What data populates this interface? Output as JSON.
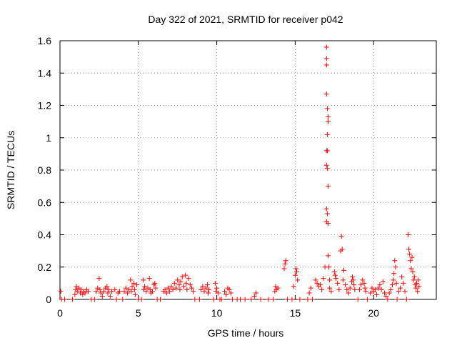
{
  "chart_data": {
    "type": "scatter",
    "title": "Day 322 of 2021, SRMTID for receiver p042",
    "xlabel": "GPS time / hours",
    "ylabel": "SRMTID / TECUs",
    "xlim": [
      0,
      24
    ],
    "ylim": [
      0,
      1.6
    ],
    "xticks": [
      0,
      5,
      10,
      15,
      20
    ],
    "xtick_labels": [
      "0",
      "5",
      "10",
      "15",
      "20"
    ],
    "yticks": [
      0,
      0.2,
      0.4,
      0.6,
      0.8,
      1.0,
      1.2,
      1.4,
      1.6
    ],
    "ytick_labels": [
      "0",
      "0.2",
      "0.4",
      "0.6",
      "0.8",
      "1",
      "1.2",
      "1.4",
      "1.6"
    ],
    "grid": true,
    "marker": "+",
    "marker_color": "#ff0000",
    "series": [
      {
        "name": "SRMTID",
        "points": [
          [
            0.05,
            0.05
          ],
          [
            0.1,
            0.0
          ],
          [
            0.3,
            0.0
          ],
          [
            0.8,
            0.0
          ],
          [
            0.95,
            0.03
          ],
          [
            1.0,
            0.06
          ],
          [
            1.05,
            0.08
          ],
          [
            1.1,
            0.05
          ],
          [
            1.2,
            0.07
          ],
          [
            1.3,
            0.04
          ],
          [
            1.35,
            0.06
          ],
          [
            1.45,
            0.03
          ],
          [
            1.5,
            0.05
          ],
          [
            1.6,
            0.04
          ],
          [
            1.7,
            0.06
          ],
          [
            1.8,
            0.05
          ],
          [
            2.0,
            0.0
          ],
          [
            2.2,
            0.0
          ],
          [
            2.3,
            0.05
          ],
          [
            2.4,
            0.07
          ],
          [
            2.5,
            0.13
          ],
          [
            2.55,
            0.06
          ],
          [
            2.6,
            0.04
          ],
          [
            2.7,
            0.02
          ],
          [
            2.8,
            0.05
          ],
          [
            2.9,
            0.07
          ],
          [
            3.0,
            0.08
          ],
          [
            3.05,
            0.04
          ],
          [
            3.1,
            0.06
          ],
          [
            3.2,
            0.02
          ],
          [
            3.3,
            0.05
          ],
          [
            3.5,
            0.06
          ],
          [
            3.6,
            0.0
          ],
          [
            3.7,
            0.04
          ],
          [
            3.8,
            0.05
          ],
          [
            4.0,
            0.0
          ],
          [
            4.1,
            0.05
          ],
          [
            4.2,
            0.07
          ],
          [
            4.3,
            0.04
          ],
          [
            4.4,
            0.06
          ],
          [
            4.5,
            0.12
          ],
          [
            4.55,
            0.05
          ],
          [
            4.6,
            0.08
          ],
          [
            4.7,
            0.1
          ],
          [
            4.75,
            0.06
          ],
          [
            4.8,
            0.03
          ],
          [
            4.9,
            0.09
          ],
          [
            5.0,
            0.0
          ],
          [
            5.2,
            0.0
          ],
          [
            5.3,
            0.12
          ],
          [
            5.35,
            0.06
          ],
          [
            5.4,
            0.08
          ],
          [
            5.5,
            0.05
          ],
          [
            5.6,
            0.07
          ],
          [
            5.7,
            0.13
          ],
          [
            5.75,
            0.06
          ],
          [
            5.8,
            0.04
          ],
          [
            5.9,
            0.05
          ],
          [
            6.0,
            0.09
          ],
          [
            6.05,
            0.1
          ],
          [
            6.1,
            0.07
          ],
          [
            6.2,
            0.0
          ],
          [
            6.4,
            0.0
          ],
          [
            6.6,
            0.05
          ],
          [
            6.7,
            0.06
          ],
          [
            6.8,
            0.04
          ],
          [
            6.9,
            0.07
          ],
          [
            7.0,
            0.05
          ],
          [
            7.1,
            0.08
          ],
          [
            7.2,
            0.06
          ],
          [
            7.3,
            0.1
          ],
          [
            7.4,
            0.07
          ],
          [
            7.5,
            0.12
          ],
          [
            7.6,
            0.09
          ],
          [
            7.65,
            0.06
          ],
          [
            7.7,
            0.11
          ],
          [
            7.8,
            0.14
          ],
          [
            7.9,
            0.08
          ],
          [
            8.0,
            0.15
          ],
          [
            8.05,
            0.1
          ],
          [
            8.1,
            0.06
          ],
          [
            8.2,
            0.13
          ],
          [
            8.3,
            0.09
          ],
          [
            8.4,
            0.07
          ],
          [
            8.5,
            0.05
          ],
          [
            8.6,
            0.0
          ],
          [
            8.9,
            0.0
          ],
          [
            9.0,
            0.06
          ],
          [
            9.1,
            0.08
          ],
          [
            9.2,
            0.05
          ],
          [
            9.3,
            0.07
          ],
          [
            9.4,
            0.09
          ],
          [
            9.45,
            0.04
          ],
          [
            9.5,
            0.06
          ],
          [
            9.8,
            0.0
          ],
          [
            9.9,
            0.1
          ],
          [
            9.95,
            0.05
          ],
          [
            10.0,
            0.07
          ],
          [
            10.1,
            0.04
          ],
          [
            10.2,
            0.0
          ],
          [
            10.3,
            0.0
          ],
          [
            10.5,
            0.05
          ],
          [
            10.6,
            0.03
          ],
          [
            10.7,
            0.07
          ],
          [
            10.8,
            0.06
          ],
          [
            10.9,
            0.04
          ],
          [
            11.0,
            0.0
          ],
          [
            11.3,
            0.0
          ],
          [
            11.5,
            0.0
          ],
          [
            11.8,
            0.0
          ],
          [
            12.2,
            0.0
          ],
          [
            12.4,
            0.02
          ],
          [
            12.5,
            0.04
          ],
          [
            12.8,
            0.0
          ],
          [
            13.3,
            0.0
          ],
          [
            13.6,
            0.0
          ],
          [
            13.7,
            0.05
          ],
          [
            13.75,
            0.08
          ],
          [
            13.8,
            0.06
          ],
          [
            13.9,
            0.07
          ],
          [
            14.3,
            0.19
          ],
          [
            14.35,
            0.22
          ],
          [
            14.4,
            0.24
          ],
          [
            14.5,
            0.0
          ],
          [
            14.8,
            0.0
          ],
          [
            14.9,
            0.08
          ],
          [
            15.0,
            0.15
          ],
          [
            15.05,
            0.19
          ],
          [
            15.1,
            0.17
          ],
          [
            15.15,
            0.12
          ],
          [
            15.3,
            0.0
          ],
          [
            15.8,
            0.0
          ],
          [
            15.9,
            0.04
          ],
          [
            16.0,
            0.07
          ],
          [
            16.1,
            0.0
          ],
          [
            16.3,
            0.12
          ],
          [
            16.4,
            0.1
          ],
          [
            16.5,
            0.08
          ],
          [
            16.6,
            0.09
          ],
          [
            16.7,
            0.06
          ],
          [
            16.8,
            0.13
          ],
          [
            16.9,
            0.2
          ],
          [
            17.0,
            1.56
          ],
          [
            17.0,
            1.49
          ],
          [
            17.0,
            1.45
          ],
          [
            17.0,
            1.27
          ],
          [
            17.05,
            1.18
          ],
          [
            17.1,
            1.13
          ],
          [
            17.1,
            1.1
          ],
          [
            17.05,
            1.02
          ],
          [
            17.0,
            0.92
          ],
          [
            17.05,
            0.92
          ],
          [
            17.0,
            0.83
          ],
          [
            17.05,
            0.81
          ],
          [
            17.1,
            0.7
          ],
          [
            17.0,
            0.56
          ],
          [
            17.05,
            0.53
          ],
          [
            17.0,
            0.48
          ],
          [
            17.1,
            0.47
          ],
          [
            17.1,
            0.27
          ],
          [
            17.15,
            0.2
          ],
          [
            17.2,
            0.12
          ],
          [
            17.2,
            0.07
          ],
          [
            17.3,
            0.05
          ],
          [
            17.5,
            0.17
          ],
          [
            17.55,
            0.15
          ],
          [
            17.6,
            0.13
          ],
          [
            17.7,
            0.1
          ],
          [
            17.8,
            0.06
          ],
          [
            17.9,
            0.3
          ],
          [
            17.95,
            0.39
          ],
          [
            18.0,
            0.31
          ],
          [
            18.05,
            0.12
          ],
          [
            18.1,
            0.18
          ],
          [
            18.2,
            0.09
          ],
          [
            18.3,
            0.06
          ],
          [
            18.4,
            0.04
          ],
          [
            18.5,
            0.07
          ],
          [
            18.6,
            0.11
          ],
          [
            18.65,
            0.14
          ],
          [
            18.7,
            0.12
          ],
          [
            18.75,
            0.09
          ],
          [
            18.8,
            0.06
          ],
          [
            19.0,
            0.0
          ],
          [
            19.1,
            0.06
          ],
          [
            19.2,
            0.09
          ],
          [
            19.3,
            0.12
          ],
          [
            19.4,
            0.1
          ],
          [
            19.45,
            0.07
          ],
          [
            19.5,
            0.05
          ],
          [
            19.6,
            0.0
          ],
          [
            19.8,
            0.04
          ],
          [
            19.9,
            0.07
          ],
          [
            20.0,
            0.05
          ],
          [
            20.1,
            0.06
          ],
          [
            20.2,
            0.03
          ],
          [
            20.3,
            0.07
          ],
          [
            20.4,
            0.09
          ],
          [
            20.5,
            0.06
          ],
          [
            20.6,
            0.11
          ],
          [
            20.7,
            0.04
          ],
          [
            20.8,
            0.02
          ],
          [
            20.9,
            0.0
          ],
          [
            21.0,
            0.04
          ],
          [
            21.1,
            0.06
          ],
          [
            21.2,
            0.09
          ],
          [
            21.25,
            0.12
          ],
          [
            21.3,
            0.16
          ],
          [
            21.35,
            0.24
          ],
          [
            21.4,
            0.2
          ],
          [
            21.45,
            0.1
          ],
          [
            21.5,
            0.0
          ],
          [
            21.6,
            0.05
          ],
          [
            21.7,
            0.07
          ],
          [
            21.8,
            0.14
          ],
          [
            21.9,
            0.1
          ],
          [
            22.0,
            0.05
          ],
          [
            22.1,
            0.0
          ],
          [
            22.2,
            0.4
          ],
          [
            22.25,
            0.31
          ],
          [
            22.3,
            0.28
          ],
          [
            22.35,
            0.24
          ],
          [
            22.4,
            0.19
          ],
          [
            22.45,
            0.26
          ],
          [
            22.5,
            0.17
          ],
          [
            22.55,
            0.12
          ],
          [
            22.6,
            0.14
          ],
          [
            22.65,
            0.09
          ],
          [
            22.7,
            0.07
          ],
          [
            22.75,
            0.1
          ],
          [
            22.8,
            0.05
          ],
          [
            22.85,
            0.12
          ],
          [
            22.9,
            0.08
          ]
        ]
      }
    ]
  }
}
